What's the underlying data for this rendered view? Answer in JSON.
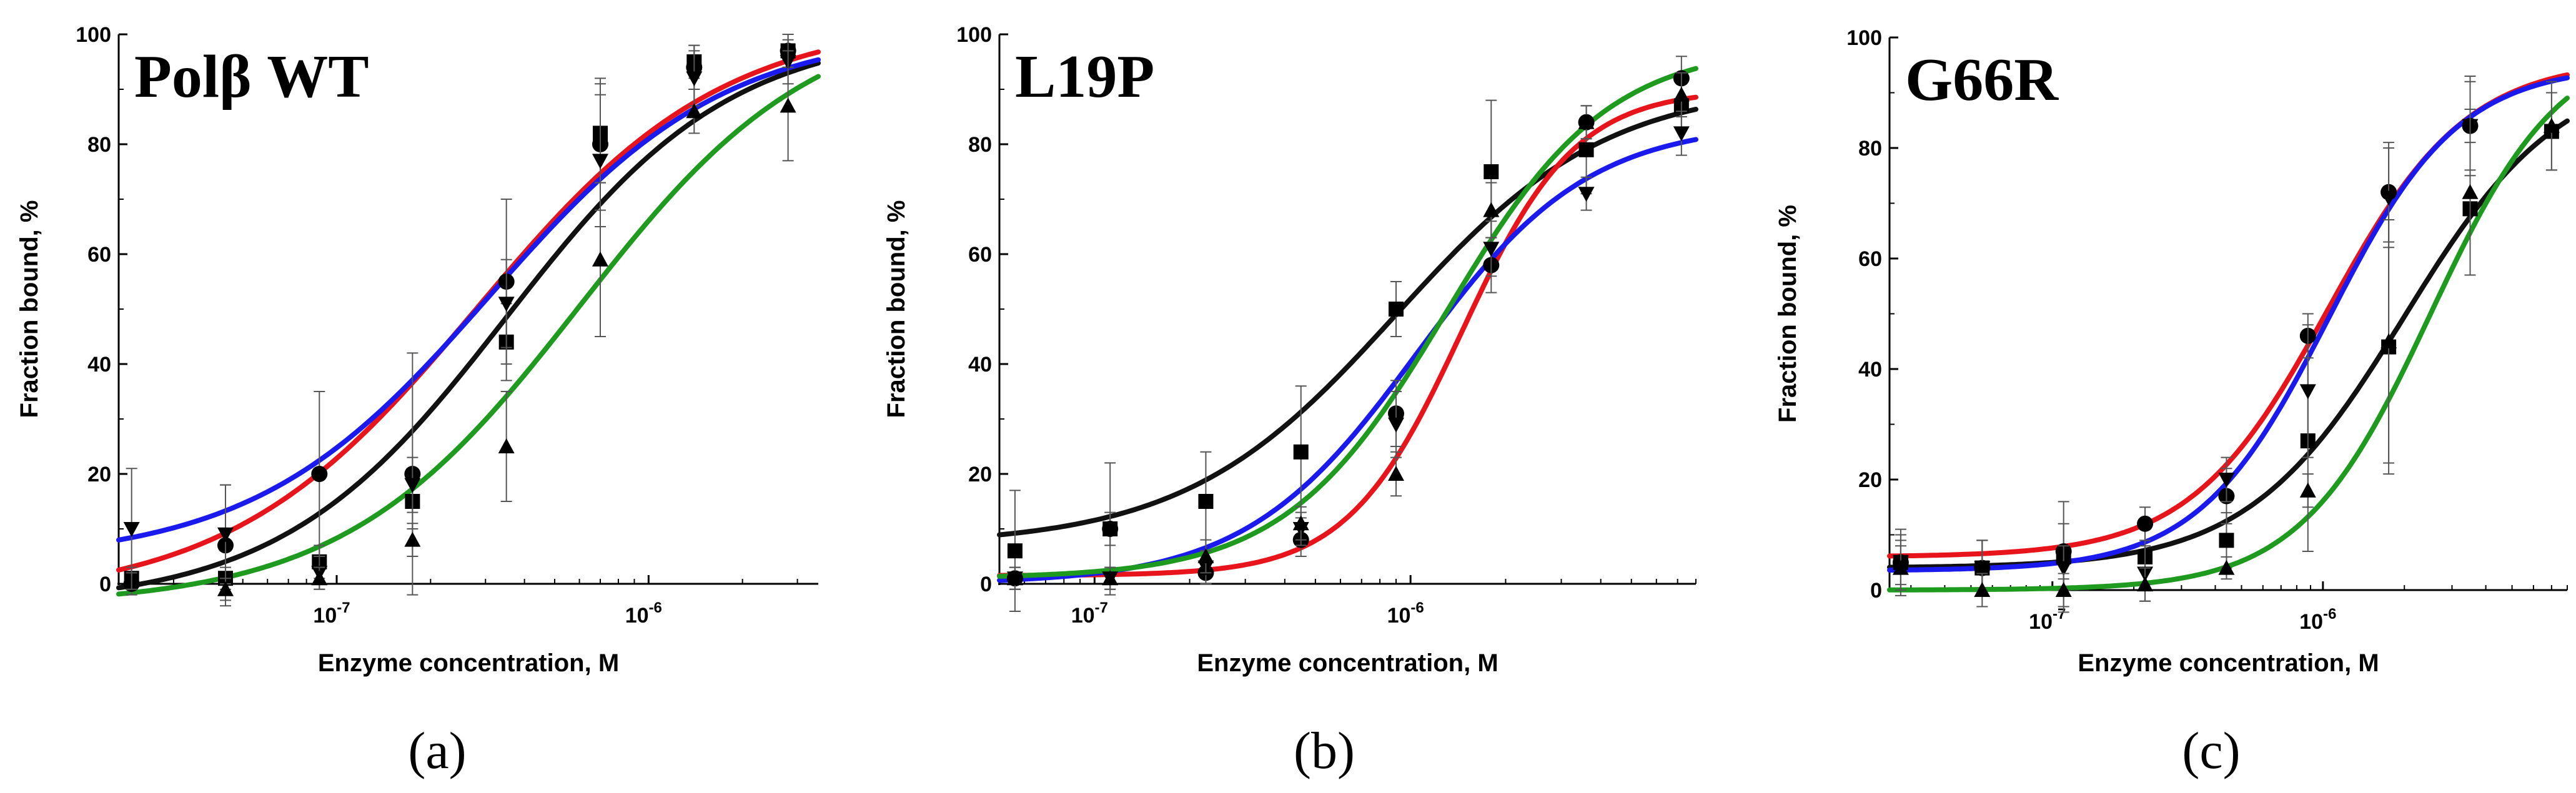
{
  "figure": {
    "series_colors": {
      "black": "#111111",
      "red": "#e8141b",
      "blue": "#1a1aee",
      "green": "#1e9a1e"
    }
  },
  "chart_data": [
    {
      "type": "scatter",
      "panel_title": "Polβ WT",
      "caption": "(a)",
      "xlabel": "Enzyme concentration, M",
      "ylabel": "Fraction bound, %",
      "xscale": "log",
      "xlim": [
        2e-08,
        3.5e-06
      ],
      "ylim": [
        0,
        100
      ],
      "x_ticks": [
        {
          "value": 1e-07,
          "label": "10",
          "exp": "-7"
        },
        {
          "value": 1e-06,
          "label": "10",
          "exp": "-6"
        }
      ],
      "y_ticks": [
        "0",
        "20",
        "40",
        "60",
        "80",
        "100"
      ],
      "series": [
        {
          "name": "squares",
          "color": "black",
          "marker": "square",
          "x": [
            2.2e-08,
            4.4e-08,
            8.8e-08,
            1.75e-07,
            3.5e-07,
            7e-07,
            1.4e-06,
            2.8e-06
          ],
          "y": [
            1,
            1,
            4,
            15,
            44,
            82,
            95,
            97
          ],
          "err": [
            2,
            2,
            3,
            5,
            7,
            9,
            3,
            3
          ],
          "fit": {
            "min": -4,
            "max": 101,
            "ec50": 3.5e-07,
            "hill": 1.2
          }
        },
        {
          "name": "circles",
          "color": "red",
          "marker": "circle",
          "x": [
            2.2e-08,
            4.4e-08,
            8.8e-08,
            1.75e-07,
            3.5e-07,
            7e-07,
            1.4e-06,
            2.8e-06
          ],
          "y": [
            0,
            7,
            20,
            20,
            55,
            80,
            94,
            97
          ],
          "err": [
            2,
            11,
            15,
            22,
            15,
            12,
            4,
            3
          ],
          "fit": {
            "min": -3,
            "max": 103,
            "ec50": 2.8e-07,
            "hill": 1.1
          }
        },
        {
          "name": "down-triangles",
          "color": "blue",
          "marker": "triangle-down",
          "x": [
            2.2e-08,
            4.4e-08,
            8.8e-08,
            1.75e-07,
            3.5e-07,
            7e-07,
            1.4e-06,
            2.8e-06
          ],
          "y": [
            10,
            9,
            2,
            18,
            51,
            77,
            92,
            95
          ],
          "err": [
            11,
            9,
            3,
            5,
            8,
            12,
            5,
            4
          ],
          "fit": {
            "min": 4,
            "max": 101,
            "ec50": 3.1e-07,
            "hill": 1.15
          }
        },
        {
          "name": "up-triangles",
          "color": "green",
          "marker": "triangle-up",
          "x": [
            4.4e-08,
            8.8e-08,
            1.75e-07,
            3.5e-07,
            7e-07,
            1.4e-06,
            2.8e-06
          ],
          "y": [
            -1,
            1,
            8,
            25,
            59,
            86,
            87
          ],
          "err": [
            2,
            2,
            3,
            10,
            14,
            4,
            10
          ],
          "fit": {
            "min": -4,
            "max": 105,
            "ec50": 6e-07,
            "hill": 1.15
          }
        }
      ]
    },
    {
      "type": "scatter",
      "panel_title": "L19P",
      "caption": "(b)",
      "xlabel": "Enzyme concentration, M",
      "ylabel": "Fraction bound, %",
      "xscale": "log",
      "xlim": [
        5e-08,
        8e-06
      ],
      "ylim": [
        0,
        100
      ],
      "x_ticks": [
        {
          "value": 1e-07,
          "label": "10",
          "exp": "-7"
        },
        {
          "value": 1e-06,
          "label": "10",
          "exp": "-6"
        }
      ],
      "y_ticks": [
        "0",
        "20",
        "40",
        "60",
        "80",
        "100"
      ],
      "series": [
        {
          "name": "squares",
          "color": "black",
          "marker": "square",
          "x": [
            5.6e-08,
            1.12e-07,
            2.25e-07,
            4.5e-07,
            9e-07,
            1.8e-06,
            3.6e-06,
            7.2e-06
          ],
          "y": [
            6,
            10,
            15,
            24,
            50,
            75,
            79,
            87
          ],
          "err": [
            11,
            12,
            9,
            12,
            5,
            13,
            8,
            4
          ],
          "fit": {
            "min": 7,
            "max": 91,
            "ec50": 9e-07,
            "hill": 1.3
          }
        },
        {
          "name": "circles",
          "color": "red",
          "marker": "circle",
          "x": [
            5.6e-08,
            1.12e-07,
            2.25e-07,
            4.5e-07,
            9e-07,
            1.8e-06,
            3.6e-06,
            7.2e-06
          ],
          "y": [
            1,
            10,
            2,
            8,
            31,
            58,
            84,
            92
          ],
          "err": [
            2,
            3,
            2,
            3,
            6,
            5,
            3,
            4
          ],
          "fit": {
            "min": 1.5,
            "max": 90,
            "ec50": 1.45e-06,
            "hill": 2.4
          }
        },
        {
          "name": "down-triangles",
          "color": "blue",
          "marker": "triangle-down",
          "x": [
            5.6e-08,
            1.12e-07,
            2.25e-07,
            4.5e-07,
            9e-07,
            1.8e-06,
            3.6e-06,
            7.2e-06
          ],
          "y": [
            1,
            1,
            3,
            10,
            29,
            61,
            71,
            82
          ],
          "err": [
            2,
            2,
            3,
            3,
            6,
            5,
            3,
            4
          ],
          "fit": {
            "min": 0,
            "max": 84,
            "ec50": 1.05e-06,
            "hill": 1.6
          }
        },
        {
          "name": "up-triangles",
          "color": "green",
          "marker": "triangle-up",
          "x": [
            5.6e-08,
            1.12e-07,
            2.25e-07,
            4.5e-07,
            9e-07,
            1.8e-06,
            3.6e-06,
            7.2e-06
          ],
          "y": [
            1,
            1,
            5,
            11,
            20,
            68,
            84,
            89
          ],
          "err": [
            2,
            2,
            3,
            3,
            4,
            5,
            3,
            4
          ],
          "fit": {
            "min": 1,
            "max": 98,
            "ec50": 1.3e-06,
            "hill": 1.7
          }
        }
      ]
    },
    {
      "type": "scatter",
      "panel_title": "G66R",
      "caption": "(c)",
      "xlabel": "Enzyme concentration, M",
      "ylabel": "Fraction bound, %",
      "xscale": "log",
      "xlim": [
        2.5e-08,
        8e-06
      ],
      "ylim": [
        0,
        100
      ],
      "x_ticks": [
        {
          "value": 1e-07,
          "label": "10",
          "exp": "-7"
        },
        {
          "value": 1e-06,
          "label": "10",
          "exp": "-6"
        }
      ],
      "y_ticks": [
        "0",
        "20",
        "40",
        "60",
        "80",
        "100"
      ],
      "series": [
        {
          "name": "squares",
          "color": "black",
          "marker": "square",
          "x": [
            2.75e-08,
            5.5e-08,
            1.1e-07,
            2.2e-07,
            4.4e-07,
            8.8e-07,
            1.75e-06,
            3.5e-06,
            7e-06
          ],
          "y": [
            5,
            4,
            6,
            6,
            9,
            27,
            44,
            69,
            83
          ],
          "err": [
            4,
            5,
            10,
            5,
            5,
            20,
            23,
            12,
            7
          ],
          "fit": {
            "min": 4,
            "max": 95,
            "ec50": 2e-06,
            "hill": 1.5
          }
        },
        {
          "name": "circles",
          "color": "red",
          "marker": "circle",
          "x": [
            2.75e-08,
            5.5e-08,
            1.1e-07,
            2.2e-07,
            4.4e-07,
            8.8e-07,
            1.75e-06,
            3.5e-06
          ],
          "y": [
            5,
            4,
            7,
            12,
            17,
            46,
            72,
            84
          ],
          "err": [
            6,
            5,
            5,
            3,
            5,
            4,
            9,
            8
          ],
          "fit": {
            "min": 6,
            "max": 96,
            "ec50": 1.05e-06,
            "hill": 1.7
          }
        },
        {
          "name": "down-triangles",
          "color": "blue",
          "marker": "triangle-down",
          "x": [
            2.75e-08,
            5.5e-08,
            1.1e-07,
            2.2e-07,
            4.4e-07,
            8.8e-07,
            1.75e-06,
            3.5e-06
          ],
          "y": [
            5,
            4,
            4,
            3,
            20,
            36,
            71,
            84
          ],
          "err": [
            5,
            5,
            4,
            5,
            4,
            12,
            9,
            9
          ],
          "fit": {
            "min": 3.5,
            "max": 95,
            "ec50": 1.05e-06,
            "hill": 1.8
          }
        },
        {
          "name": "up-triangles",
          "color": "green",
          "marker": "triangle-up",
          "x": [
            2.75e-08,
            5.5e-08,
            1.1e-07,
            2.2e-07,
            4.4e-07,
            8.8e-07,
            1.75e-06,
            3.5e-06,
            7e-06
          ],
          "y": [
            4,
            0,
            0,
            1,
            4,
            18,
            45,
            72,
            84
          ],
          "err": [
            4,
            3,
            3,
            3,
            2,
            3,
            22,
            15,
            8
          ],
          "fit": {
            "min": 0,
            "max": 100,
            "ec50": 2.5e-06,
            "hill": 1.8
          }
        }
      ]
    }
  ]
}
